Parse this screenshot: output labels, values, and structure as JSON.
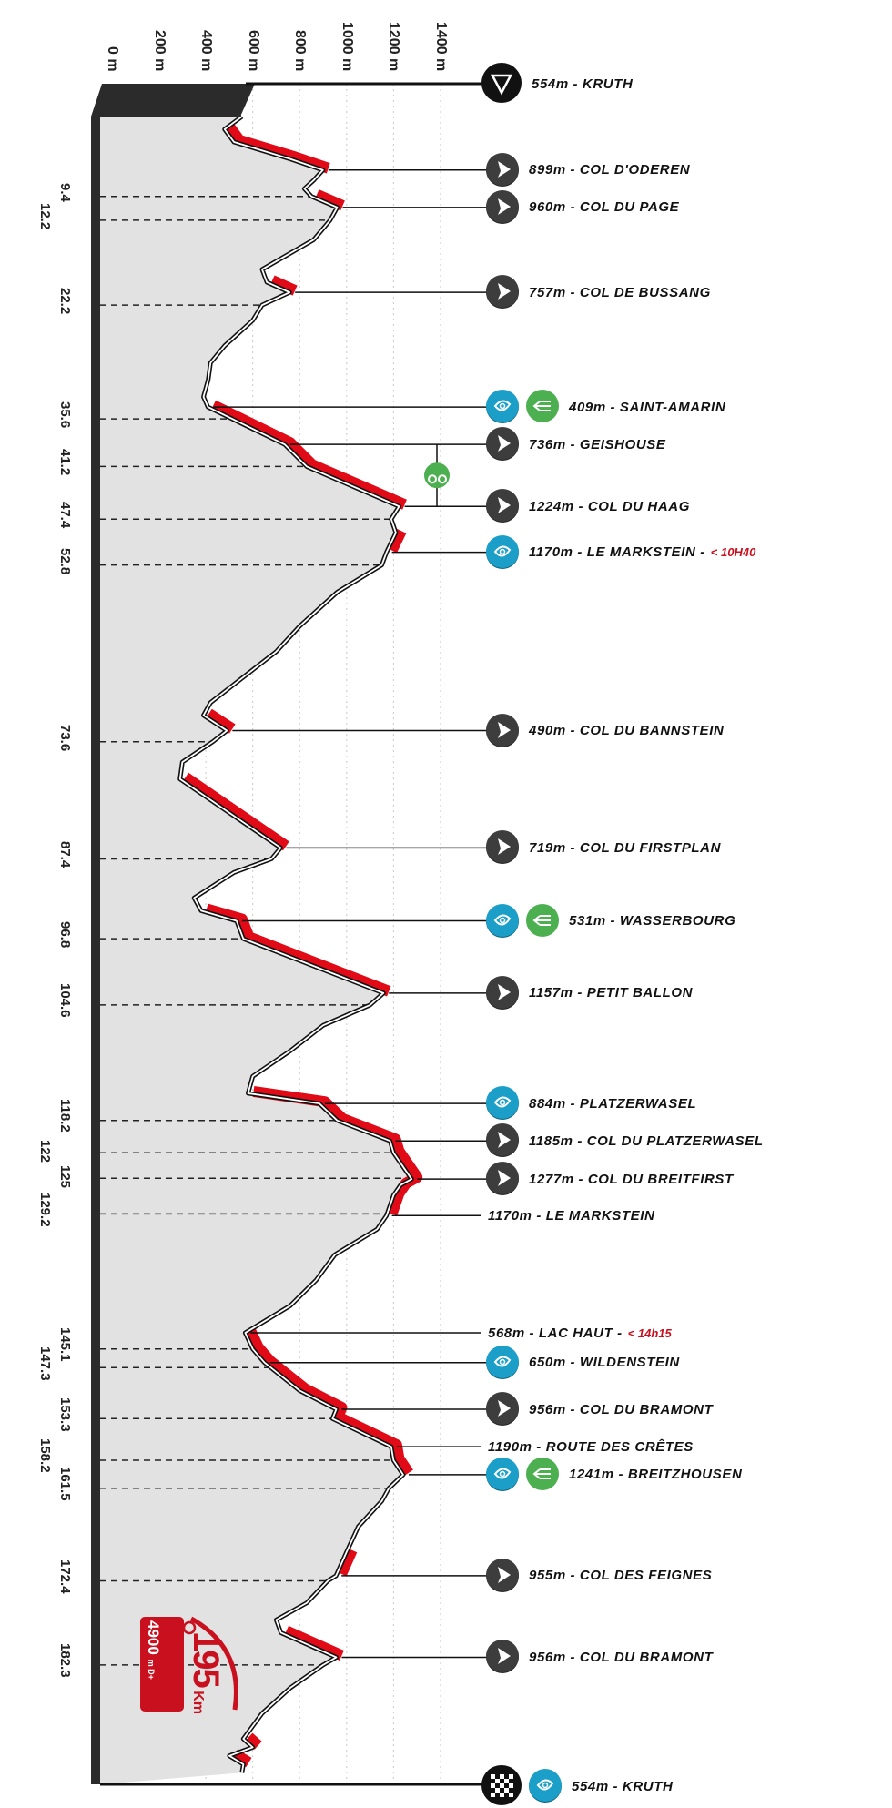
{
  "chart_data": {
    "type": "line",
    "orientation": "vertical-profile",
    "x_axis": {
      "ticks": [
        "0 m",
        "200 m",
        "400 m",
        "600 m",
        "800 m",
        "1000 m",
        "1200 m",
        "1400 m"
      ],
      "range_m": [
        0,
        1400
      ],
      "grid": "dotted"
    },
    "distance_range_km": [
      0,
      195
    ],
    "km_marks": [
      "9.4",
      "12.2",
      "22.2",
      "35.6",
      "41.2",
      "47.4",
      "52.8",
      "73.6",
      "87.4",
      "96.8",
      "104.6",
      "118.2",
      "122",
      "125",
      "129.2",
      "145.1",
      "147.3",
      "153.3",
      "158.2",
      "161.5",
      "172.4",
      "182.3"
    ],
    "profile": [
      [
        0,
        554
      ],
      [
        1.5,
        480
      ],
      [
        3,
        520
      ],
      [
        5,
        760
      ],
      [
        6.3,
        899
      ],
      [
        7.5,
        860
      ],
      [
        8.5,
        820
      ],
      [
        9.4,
        850
      ],
      [
        10.7,
        960
      ],
      [
        12.2,
        930
      ],
      [
        14.5,
        860
      ],
      [
        18,
        640
      ],
      [
        19.5,
        660
      ],
      [
        20.7,
        757
      ],
      [
        22.2,
        640
      ],
      [
        24,
        600
      ],
      [
        27,
        480
      ],
      [
        29,
        420
      ],
      [
        31,
        410
      ],
      [
        33,
        390
      ],
      [
        34.2,
        409
      ],
      [
        38.6,
        736
      ],
      [
        41.2,
        830
      ],
      [
        45.9,
        1224
      ],
      [
        47.4,
        1190
      ],
      [
        49,
        1210
      ],
      [
        51.3,
        1170
      ],
      [
        52.8,
        1150
      ],
      [
        56,
        960
      ],
      [
        60,
        800
      ],
      [
        63,
        700
      ],
      [
        66,
        560
      ],
      [
        69,
        420
      ],
      [
        70.5,
        390
      ],
      [
        72.3,
        490
      ],
      [
        73.6,
        430
      ],
      [
        76,
        300
      ],
      [
        78,
        290
      ],
      [
        86.1,
        719
      ],
      [
        87.4,
        680
      ],
      [
        89,
        520
      ],
      [
        92,
        350
      ],
      [
        93.5,
        380
      ],
      [
        94.7,
        531
      ],
      [
        96.8,
        560
      ],
      [
        103.2,
        1157
      ],
      [
        104.6,
        1100
      ],
      [
        107,
        900
      ],
      [
        110,
        760
      ],
      [
        113,
        600
      ],
      [
        115,
        580
      ],
      [
        116.2,
        884
      ],
      [
        118.2,
        960
      ],
      [
        120.6,
        1185
      ],
      [
        122,
        1200
      ],
      [
        125.1,
        1277
      ],
      [
        125.8,
        1230
      ],
      [
        127,
        1200
      ],
      [
        129.4,
        1170
      ],
      [
        131,
        1130
      ],
      [
        134,
        950
      ],
      [
        137,
        870
      ],
      [
        140,
        760
      ],
      [
        143.2,
        568
      ],
      [
        145.1,
        600
      ],
      [
        146.7,
        650
      ],
      [
        150,
        800
      ],
      [
        152.2,
        956
      ],
      [
        153.3,
        940
      ],
      [
        156.6,
        1190
      ],
      [
        158.2,
        1200
      ],
      [
        159.9,
        1241
      ],
      [
        161.5,
        1180
      ],
      [
        163,
        1150
      ],
      [
        166,
        1050
      ],
      [
        169,
        1000
      ],
      [
        171.8,
        955
      ],
      [
        172.4,
        920
      ],
      [
        175,
        830
      ],
      [
        177,
        700
      ],
      [
        178.5,
        720
      ],
      [
        181.4,
        956
      ],
      [
        182.3,
        900
      ],
      [
        185,
        760
      ],
      [
        188,
        640
      ],
      [
        191,
        560
      ],
      [
        192,
        600
      ],
      [
        193,
        500
      ],
      [
        194,
        560
      ],
      [
        195,
        554
      ]
    ],
    "climbs_km": [
      [
        1.5,
        6.3
      ],
      [
        9.4,
        10.7
      ],
      [
        19.5,
        20.7
      ],
      [
        34.2,
        45.9
      ],
      [
        49,
        51.3
      ],
      [
        70.5,
        72.3
      ],
      [
        78,
        86.1
      ],
      [
        93.5,
        103.2
      ],
      [
        115,
        129.4
      ],
      [
        143.2,
        159.9
      ],
      [
        169,
        171.8
      ],
      [
        178.5,
        181.4
      ],
      [
        191,
        192
      ],
      [
        193,
        194
      ]
    ],
    "waypoints": [
      {
        "km": 0,
        "label": "554m - KRUTH",
        "icons": [
          "start-icon"
        ]
      },
      {
        "km": 6.3,
        "label": "899m - COL D'ODEREN",
        "icons": [
          "summit-icon"
        ]
      },
      {
        "km": 10.7,
        "label": "960m - COL DU PAGE",
        "icons": [
          "summit-icon"
        ]
      },
      {
        "km": 20.7,
        "label": "757m - COL DE BUSSANG",
        "icons": [
          "summit-icon"
        ]
      },
      {
        "km": 34.2,
        "label": "409m - SAINT-AMARIN",
        "icons": [
          "water-icon",
          "food-icon"
        ]
      },
      {
        "km": 38.6,
        "label": "736m - GEISHOUSE",
        "icons": [
          "summit-icon"
        ]
      },
      {
        "km": 45.9,
        "label": "1224m - COL DU HAAG",
        "icons": [
          "summit-icon"
        ]
      },
      {
        "km": 51.3,
        "label": "1170m - LE MARKSTEIN -",
        "note": "< 10H40",
        "icons": [
          "water-icon"
        ]
      },
      {
        "km": 72.3,
        "label": "490m - COL DU BANNSTEIN",
        "icons": [
          "summit-icon"
        ]
      },
      {
        "km": 86.1,
        "label": "719m - COL DU FIRSTPLAN",
        "icons": [
          "summit-icon"
        ]
      },
      {
        "km": 94.7,
        "label": "531m - WASSERBOURG",
        "icons": [
          "water-icon",
          "food-icon"
        ]
      },
      {
        "km": 103.2,
        "label": "1157m - PETIT BALLON",
        "icons": [
          "summit-icon"
        ]
      },
      {
        "km": 116.2,
        "label": "884m - PLATZERWASEL",
        "icons": [
          "water-icon"
        ]
      },
      {
        "km": 120.6,
        "label": "1185m - COL DU PLATZERWASEL",
        "icons": [
          "summit-icon"
        ]
      },
      {
        "km": 125.1,
        "label": "1277m - COL DU BREITFIRST",
        "icons": [
          "summit-icon"
        ]
      },
      {
        "km": 129.4,
        "label": "1170m - LE MARKSTEIN",
        "icons": []
      },
      {
        "km": 143.2,
        "label": "568m - LAC HAUT -",
        "note": "< 14h15",
        "icons": []
      },
      {
        "km": 146.7,
        "label": "650m - WILDENSTEIN",
        "icons": [
          "water-icon"
        ]
      },
      {
        "km": 152.2,
        "label": "956m - COL DU BRAMONT",
        "icons": [
          "summit-icon"
        ]
      },
      {
        "km": 156.6,
        "label": "1190m - ROUTE DES CRÊTES",
        "icons": []
      },
      {
        "km": 159.9,
        "label": "1241m - BREITZHOUSEN",
        "icons": [
          "water-icon",
          "food-icon"
        ]
      },
      {
        "km": 171.8,
        "label": "955m - COL DES FEIGNES",
        "icons": [
          "summit-icon"
        ]
      },
      {
        "km": 181.4,
        "label": "956m - COL DU BRAMONT",
        "icons": [
          "summit-icon"
        ]
      },
      {
        "km": 195,
        "label": "554m - KRUTH",
        "icons": [
          "finish-icon",
          "water-icon"
        ]
      }
    ],
    "cyclist_marker_between": [
      38.6,
      45.9
    ],
    "colors": {
      "climb": "#e10a17",
      "fill": "#e2e2e2",
      "axis": "#2b2b2b",
      "summit": "#3d3d3d",
      "water": "#1b9fc9",
      "food": "#4caf50",
      "note": "#c8101e"
    }
  },
  "summary": {
    "distance": "195",
    "distance_unit": "Km",
    "elevation_gain": "4900",
    "elevation_unit": "m D+"
  }
}
